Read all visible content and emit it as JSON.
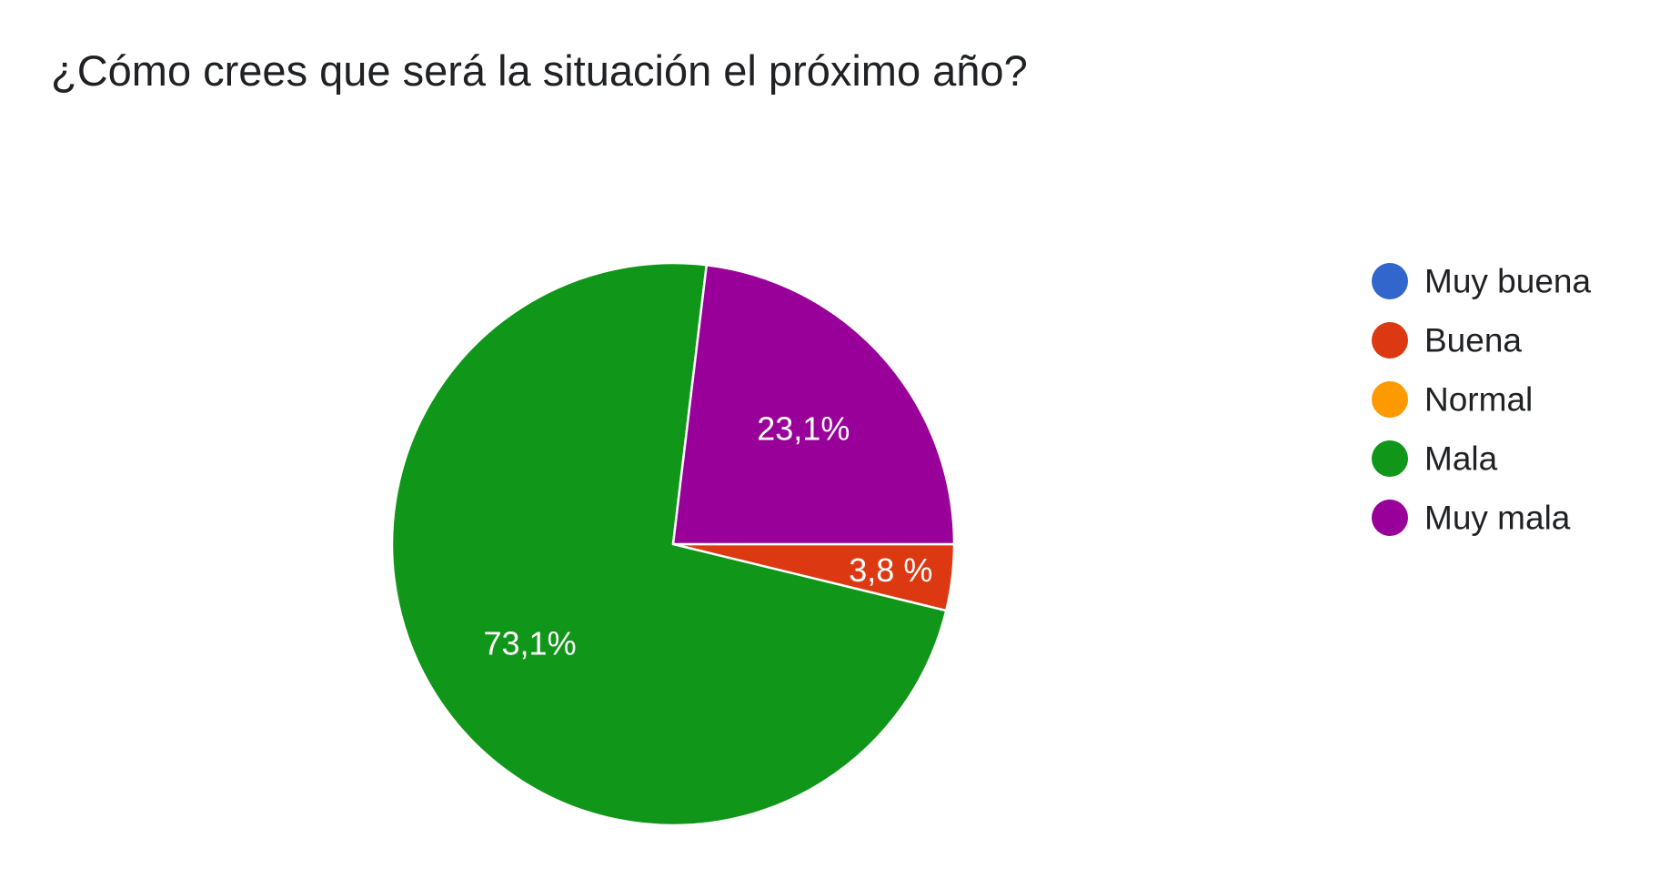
{
  "chart_data": {
    "type": "pie",
    "title": "¿Cómo crees que será la situación el próximo año?",
    "categories": [
      "Muy buena",
      "Buena",
      "Normal",
      "Mala",
      "Muy mala"
    ],
    "values": [
      0,
      3.8,
      0,
      73.1,
      23.1
    ],
    "data_labels": [
      "",
      "3,8 %",
      "",
      "73,1%",
      "23,1%"
    ],
    "colors": [
      "#3366cc",
      "#dc3912",
      "#ff9900",
      "#109618",
      "#990099"
    ],
    "legend_position": "right"
  }
}
